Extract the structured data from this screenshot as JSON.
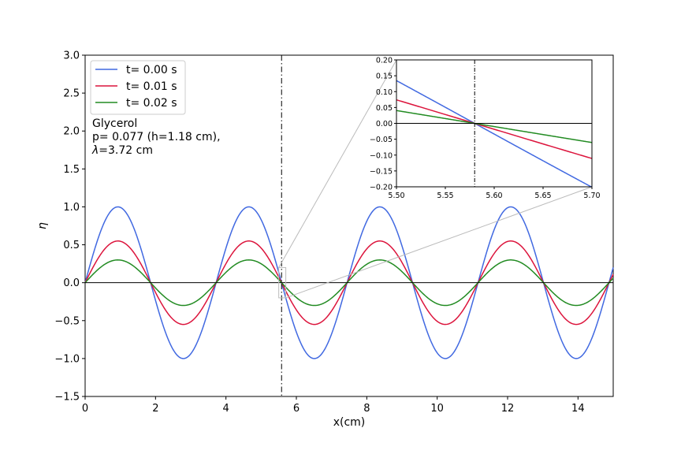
{
  "chart_data": [
    {
      "type": "line",
      "xlabel": "x(cm)",
      "ylabel": "η",
      "xlim": [
        0,
        15
      ],
      "ylim": [
        -1.5,
        3.0
      ],
      "x_ticks": [
        0,
        2,
        4,
        6,
        8,
        10,
        12,
        14
      ],
      "y_ticks": [
        -1.5,
        -1.0,
        -0.5,
        0.0,
        0.5,
        1.0,
        1.5,
        2.0,
        2.5,
        3.0
      ],
      "x_tick_labels": [
        "0",
        "2",
        "4",
        "6",
        "8",
        "10",
        "12",
        "14"
      ],
      "y_tick_labels": [
        "−1.5",
        "−1.0",
        "−0.5",
        "0.0",
        "0.5",
        "1.0",
        "1.5",
        "2.0",
        "2.5",
        "3.0"
      ],
      "wavelength": 3.72,
      "zero_crossing": 5.58,
      "series": [
        {
          "name": "t= 0.00 s",
          "amplitude": 1.0,
          "color": "#4169e1"
        },
        {
          "name": "t= 0.01 s",
          "amplitude": 0.55,
          "color": "#dc143c"
        },
        {
          "name": "t= 0.02 s",
          "amplitude": 0.3,
          "color": "#228b22"
        }
      ],
      "vertical_line_x": 5.58,
      "horizontal_line_y": 0.0,
      "legend_position": "top-left",
      "annotation": {
        "line1": "Glycerol",
        "line2": "p= 0.077 (h=1.18 cm),",
        "line3_symbol": "λ",
        "line3_rest": "=3.72 cm"
      },
      "grid": false
    },
    {
      "type": "line",
      "role": "inset",
      "xlim": [
        5.5,
        5.7
      ],
      "ylim": [
        -0.2,
        0.2
      ],
      "x_ticks": [
        5.5,
        5.55,
        5.6,
        5.65,
        5.7
      ],
      "y_ticks": [
        -0.2,
        -0.15,
        -0.1,
        -0.05,
        0.0,
        0.05,
        0.1,
        0.15,
        0.2
      ],
      "x_tick_labels": [
        "5.50",
        "5.55",
        "5.60",
        "5.65",
        "5.70"
      ],
      "y_tick_labels": [
        "−0.20",
        "−0.15",
        "−0.10",
        "−0.05",
        "0.00",
        "0.05",
        "0.10",
        "0.15",
        "0.20"
      ],
      "vertical_line_x": 5.58,
      "horizontal_line_y": 0.0,
      "grid": false
    }
  ]
}
